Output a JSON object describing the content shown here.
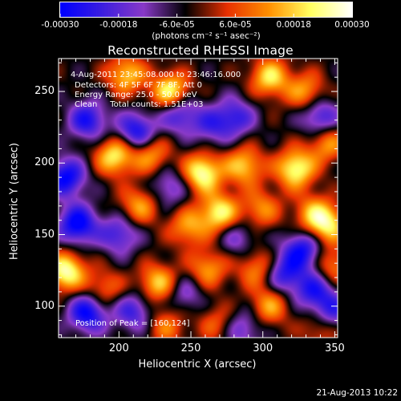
{
  "chart_data": {
    "type": "heatmap",
    "title": "Reconstructed RHESSI Image",
    "xlabel": "Heliocentric X (arcsec)",
    "ylabel": "Heliocentric Y (arcsec)",
    "xlim": [
      158,
      352
    ],
    "ylim": [
      78,
      273
    ],
    "x_ticks": [
      200,
      250,
      300,
      350
    ],
    "y_ticks": [
      100,
      150,
      200,
      250
    ],
    "colorbar": {
      "range": [
        -0.0003,
        0.0003
      ],
      "tick_values": [
        -0.0003,
        -0.00018,
        -6e-05,
        6e-05,
        0.00018,
        0.0003
      ],
      "tick_labels": [
        "-0.00030",
        "-0.00018",
        "-6.0e-05",
        "6.0e-05",
        "0.00018",
        "0.00030"
      ],
      "unit_label": "(photons cm⁻² s⁻¹ asec⁻²)",
      "colors": [
        "#0000ff",
        "#3c1ee0",
        "#8a3ac8",
        "#000000",
        "#e83000",
        "#ff9000",
        "#ffff60",
        "#ffffff"
      ]
    },
    "annotations": [
      " 4-Aug-2011 23:45:08.000 to 23:46:16.000",
      "Detectors: 4F 5F 6F 7F 8F, Att 0",
      "Energy Range: 25.0 - 50.0 keV",
      "Clean     Total counts: 1.51E+03"
    ],
    "peak_label": "Position of Peak = [160,124]",
    "blobs": [
      {
        "x": 205,
        "y": 262,
        "v": 0.00022
      },
      {
        "x": 236,
        "y": 250,
        "v": 0.00028
      },
      {
        "x": 305,
        "y": 260,
        "v": 0.00024
      },
      {
        "x": 330,
        "y": 250,
        "v": 0.00018
      },
      {
        "x": 197,
        "y": 205,
        "v": 0.00026
      },
      {
        "x": 222,
        "y": 206,
        "v": 0.00018
      },
      {
        "x": 258,
        "y": 193,
        "v": 0.0003
      },
      {
        "x": 287,
        "y": 198,
        "v": 0.00022
      },
      {
        "x": 323,
        "y": 196,
        "v": 0.00029
      },
      {
        "x": 345,
        "y": 214,
        "v": 0.00018
      },
      {
        "x": 214,
        "y": 170,
        "v": 0.00018
      },
      {
        "x": 248,
        "y": 155,
        "v": 0.00018
      },
      {
        "x": 270,
        "y": 165,
        "v": 0.00027
      },
      {
        "x": 299,
        "y": 168,
        "v": 0.00016
      },
      {
        "x": 335,
        "y": 165,
        "v": 0.00016
      },
      {
        "x": 345,
        "y": 157,
        "v": 0.00024
      },
      {
        "x": 163,
        "y": 124,
        "v": 0.0003
      },
      {
        "x": 190,
        "y": 112,
        "v": 0.00014
      },
      {
        "x": 227,
        "y": 116,
        "v": 0.00022
      },
      {
        "x": 262,
        "y": 126,
        "v": 0.00018
      },
      {
        "x": 296,
        "y": 126,
        "v": 0.00016
      },
      {
        "x": 305,
        "y": 100,
        "v": 0.00018
      },
      {
        "x": 349,
        "y": 128,
        "v": 0.00016
      },
      {
        "x": 268,
        "y": 88,
        "v": 0.00012
      },
      {
        "x": 233,
        "y": 86,
        "v": 0.00014
      },
      {
        "x": 340,
        "y": 84,
        "v": 0.00012
      },
      {
        "x": 178,
        "y": 230,
        "v": -0.00022
      },
      {
        "x": 163,
        "y": 190,
        "v": -0.00026
      },
      {
        "x": 212,
        "y": 222,
        "v": -0.00024
      },
      {
        "x": 171,
        "y": 157,
        "v": -0.00028
      },
      {
        "x": 200,
        "y": 150,
        "v": -0.00018
      },
      {
        "x": 242,
        "y": 235,
        "v": -0.0002
      },
      {
        "x": 281,
        "y": 232,
        "v": -0.00018
      },
      {
        "x": 264,
        "y": 226,
        "v": -0.00014
      },
      {
        "x": 340,
        "y": 232,
        "v": -0.0002
      },
      {
        "x": 235,
        "y": 183,
        "v": -0.00014
      },
      {
        "x": 328,
        "y": 139,
        "v": -0.00024
      },
      {
        "x": 282,
        "y": 148,
        "v": -0.00012
      },
      {
        "x": 178,
        "y": 95,
        "v": -0.00026
      },
      {
        "x": 210,
        "y": 96,
        "v": -0.00018
      },
      {
        "x": 315,
        "y": 122,
        "v": -0.0002
      },
      {
        "x": 336,
        "y": 111,
        "v": -0.0002
      },
      {
        "x": 286,
        "y": 84,
        "v": -0.00014
      },
      {
        "x": 246,
        "y": 108,
        "v": -0.00012
      },
      {
        "x": 348,
        "y": 96,
        "v": -0.00018
      }
    ]
  },
  "footer_date": "21-Aug-2013 10:22"
}
